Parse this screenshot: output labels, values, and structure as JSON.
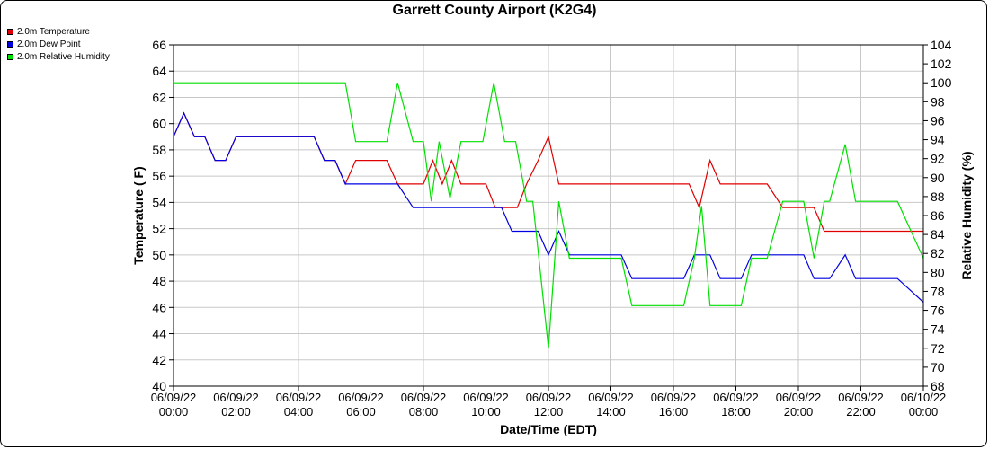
{
  "chart_data": {
    "type": "line",
    "title": "Garrett County Airport (K2G4)",
    "xlabel": "Date/Time (EDT)",
    "ylabel": "Temperature ( F)",
    "y2label": "Relative Humidity (%)",
    "x_range_hours": [
      0,
      24
    ],
    "ylim": [
      40,
      66
    ],
    "y2lim": [
      68,
      104
    ],
    "y_ticks": [
      40,
      42,
      44,
      46,
      48,
      50,
      52,
      54,
      56,
      58,
      60,
      62,
      64,
      66
    ],
    "y2_ticks": [
      68,
      70,
      72,
      74,
      76,
      78,
      80,
      82,
      84,
      86,
      88,
      90,
      92,
      94,
      96,
      98,
      100,
      102,
      104
    ],
    "x_ticks": [
      {
        "h": 0,
        "date": "06/09/22",
        "time": "00:00"
      },
      {
        "h": 2,
        "date": "06/09/22",
        "time": "02:00"
      },
      {
        "h": 4,
        "date": "06/09/22",
        "time": "04:00"
      },
      {
        "h": 6,
        "date": "06/09/22",
        "time": "06:00"
      },
      {
        "h": 8,
        "date": "06/09/22",
        "time": "08:00"
      },
      {
        "h": 10,
        "date": "06/09/22",
        "time": "10:00"
      },
      {
        "h": 12,
        "date": "06/09/22",
        "time": "12:00"
      },
      {
        "h": 14,
        "date": "06/09/22",
        "time": "14:00"
      },
      {
        "h": 16,
        "date": "06/09/22",
        "time": "16:00"
      },
      {
        "h": 18,
        "date": "06/09/22",
        "time": "18:00"
      },
      {
        "h": 20,
        "date": "06/09/22",
        "time": "20:00"
      },
      {
        "h": 22,
        "date": "06/09/22",
        "time": "22:00"
      },
      {
        "h": 24,
        "date": "06/10/22",
        "time": "00:00"
      }
    ],
    "series": [
      {
        "name": "2.0m Temperature",
        "color": "#e00000",
        "axis": "left",
        "points": [
          [
            0,
            59
          ],
          [
            0.33,
            60.8
          ],
          [
            0.67,
            59
          ],
          [
            1,
            59
          ],
          [
            1.33,
            57.2
          ],
          [
            1.67,
            57.2
          ],
          [
            2,
            59
          ],
          [
            4.5,
            59
          ],
          [
            4.83,
            57.2
          ],
          [
            5.17,
            57.2
          ],
          [
            5.5,
            55.4
          ],
          [
            5.83,
            57.2
          ],
          [
            6.83,
            57.2
          ],
          [
            7.17,
            55.4
          ],
          [
            8,
            55.4
          ],
          [
            8.3,
            57.2
          ],
          [
            8.6,
            55.4
          ],
          [
            8.9,
            57.2
          ],
          [
            9.2,
            55.4
          ],
          [
            10,
            55.4
          ],
          [
            10.3,
            53.6
          ],
          [
            11,
            53.6
          ],
          [
            11.3,
            55.4
          ],
          [
            11.67,
            57.2
          ],
          [
            12,
            59
          ],
          [
            12.33,
            55.4
          ],
          [
            16.5,
            55.4
          ],
          [
            16.83,
            53.6
          ],
          [
            17.17,
            57.2
          ],
          [
            17.5,
            55.4
          ],
          [
            19,
            55.4
          ],
          [
            19.5,
            53.6
          ],
          [
            20.5,
            53.6
          ],
          [
            20.83,
            51.8
          ],
          [
            24,
            51.8
          ]
        ]
      },
      {
        "name": "2.0m Dew Point",
        "color": "#0000e0",
        "axis": "left",
        "points": [
          [
            0,
            59
          ],
          [
            0.33,
            60.8
          ],
          [
            0.67,
            59
          ],
          [
            1,
            59
          ],
          [
            1.33,
            57.2
          ],
          [
            1.67,
            57.2
          ],
          [
            2,
            59
          ],
          [
            4.5,
            59
          ],
          [
            4.83,
            57.2
          ],
          [
            5.17,
            57.2
          ],
          [
            5.5,
            55.4
          ],
          [
            7.17,
            55.4
          ],
          [
            7.67,
            53.6
          ],
          [
            10.5,
            53.6
          ],
          [
            10.83,
            51.8
          ],
          [
            11.67,
            51.8
          ],
          [
            12,
            50
          ],
          [
            12.33,
            51.8
          ],
          [
            12.67,
            50
          ],
          [
            14.33,
            50
          ],
          [
            14.67,
            48.2
          ],
          [
            16.33,
            48.2
          ],
          [
            16.67,
            50
          ],
          [
            17.17,
            50
          ],
          [
            17.5,
            48.2
          ],
          [
            18.17,
            48.2
          ],
          [
            18.5,
            50
          ],
          [
            20.17,
            50
          ],
          [
            20.5,
            48.2
          ],
          [
            21,
            48.2
          ],
          [
            21.5,
            50
          ],
          [
            21.83,
            48.2
          ],
          [
            23.17,
            48.2
          ],
          [
            24,
            46.4
          ]
        ]
      },
      {
        "name": "2.0m Relative Humidity",
        "color": "#00e000",
        "axis": "right",
        "points": [
          [
            0,
            100
          ],
          [
            5.5,
            100
          ],
          [
            5.83,
            93.8
          ],
          [
            6.83,
            93.8
          ],
          [
            7.17,
            100
          ],
          [
            7.67,
            93.8
          ],
          [
            8,
            93.8
          ],
          [
            8.25,
            87.5
          ],
          [
            8.5,
            93.8
          ],
          [
            8.85,
            87.8
          ],
          [
            9.2,
            93.8
          ],
          [
            9.9,
            93.8
          ],
          [
            10.25,
            100
          ],
          [
            10.6,
            93.8
          ],
          [
            10.95,
            93.8
          ],
          [
            11.3,
            87.5
          ],
          [
            11.5,
            87.5
          ],
          [
            12,
            72
          ],
          [
            12.33,
            87.5
          ],
          [
            12.67,
            81.5
          ],
          [
            14.33,
            81.5
          ],
          [
            14.67,
            76.5
          ],
          [
            16.33,
            76.5
          ],
          [
            16.67,
            81.5
          ],
          [
            16.9,
            87
          ],
          [
            17.17,
            76.5
          ],
          [
            17.5,
            76.5
          ],
          [
            18.17,
            76.5
          ],
          [
            18.5,
            81.5
          ],
          [
            19,
            81.5
          ],
          [
            19.5,
            87.5
          ],
          [
            20.17,
            87.5
          ],
          [
            20.5,
            81.5
          ],
          [
            20.83,
            87.5
          ],
          [
            21,
            87.5
          ],
          [
            21.5,
            93.5
          ],
          [
            21.83,
            87.5
          ],
          [
            23.17,
            87.5
          ],
          [
            24,
            81.5
          ]
        ]
      }
    ]
  }
}
